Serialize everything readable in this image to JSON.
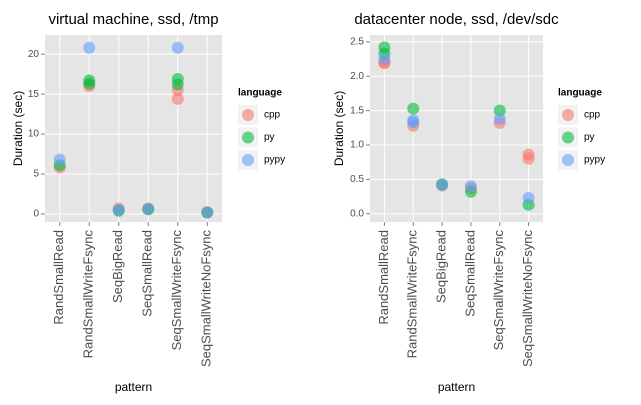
{
  "chart_data": [
    {
      "type": "dot",
      "title": "virtual machine, ssd, /tmp",
      "x_label": "pattern",
      "y_label": "Duration (sec)",
      "categories": [
        "RandSmallRead",
        "RandSmallWriteFsync",
        "SeqBigRead",
        "SeqSmallRead",
        "SeqSmallWriteFsync",
        "SeqSmallWriteNoFsync"
      ],
      "ylim": [
        -1.0,
        22.4
      ],
      "yticks": [
        0,
        5,
        10,
        15,
        20
      ],
      "grid": true,
      "legend_title": "language",
      "legend_position": "right",
      "series": [
        {
          "name": "cpp",
          "color": "#F8766D",
          "values": [
            [
              5.8
            ],
            [
              16.0
            ],
            [
              0.7
            ],
            [
              0.7
            ],
            [
              14.4,
              15.5
            ],
            [
              0.2
            ]
          ]
        },
        {
          "name": "py",
          "color": "#00BA38",
          "values": [
            [
              6.1
            ],
            [
              16.7,
              16.3
            ],
            [
              0.4
            ],
            [
              0.6
            ],
            [
              16.9,
              16.2
            ],
            [
              0.2
            ]
          ]
        },
        {
          "name": "pypy",
          "color": "#619CFF",
          "values": [
            [
              6.8
            ],
            [
              20.8
            ],
            [
              0.5
            ],
            [
              0.6
            ],
            [
              20.8
            ],
            [
              0.2
            ]
          ]
        }
      ]
    },
    {
      "type": "dot",
      "title": "datacenter node, ssd, /dev/sdc",
      "x_label": "pattern",
      "y_label": "Duration (sec)",
      "categories": [
        "RandSmallRead",
        "RandSmallWriteFsync",
        "SeqBigRead",
        "SeqSmallRead",
        "SeqSmallWriteFsync",
        "SeqSmallWriteNoFsync"
      ],
      "ylim": [
        -0.12,
        2.6
      ],
      "yticks": [
        {
          "value": 0,
          "label": "0.0"
        },
        {
          "value": 0.5,
          "label": "0.5"
        },
        {
          "value": 1,
          "label": "1.0"
        },
        {
          "value": 1.5,
          "label": "1.5"
        },
        {
          "value": 2,
          "label": "2.0"
        },
        {
          "value": 2.5,
          "label": "2.5"
        }
      ],
      "grid": true,
      "legend_title": "language",
      "legend_position": "right",
      "series": [
        {
          "name": "cpp",
          "color": "#F8766D",
          "values": [
            [
              2.2,
              2.19
            ],
            [
              1.28
            ],
            [
              0.41
            ],
            [
              0.37
            ],
            [
              1.32
            ],
            [
              0.86,
              0.8
            ]
          ]
        },
        {
          "name": "py",
          "color": "#00BA38",
          "values": [
            [
              2.42,
              2.33
            ],
            [
              1.53
            ],
            [
              0.43
            ],
            [
              0.32
            ],
            [
              1.5
            ],
            [
              0.13
            ]
          ]
        },
        {
          "name": "pypy",
          "color": "#619CFF",
          "values": [
            [
              2.25
            ],
            [
              1.36,
              1.33
            ],
            [
              0.42
            ],
            [
              0.4
            ],
            [
              1.38
            ],
            [
              0.23
            ]
          ]
        }
      ]
    }
  ]
}
